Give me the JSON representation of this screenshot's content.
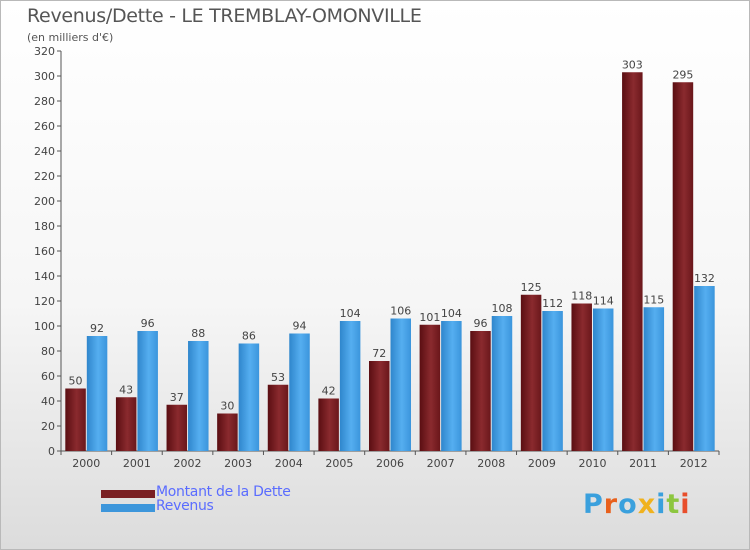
{
  "header": {
    "title": "Revenus/Dette - LE TREMBLAY-OMONVILLE",
    "unit_note": "(en milliers d'€)"
  },
  "legend": {
    "items": [
      {
        "label": "Montant de la Dette",
        "color": "#7a1f22"
      },
      {
        "label": "Revenus",
        "color": "#3d96db"
      }
    ]
  },
  "logo": {
    "text": "Proxiti",
    "letter_colors": [
      "#3aa0dd",
      "#e8601c",
      "#3aa0dd",
      "#f0b21e",
      "#3aa0dd",
      "#8cc63f",
      "#e84e2b"
    ]
  },
  "chart_data": {
    "type": "bar",
    "categories": [
      "2000",
      "2001",
      "2002",
      "2003",
      "2004",
      "2005",
      "2006",
      "2007",
      "2008",
      "2009",
      "2010",
      "2011",
      "2012"
    ],
    "series": [
      {
        "name": "Montant de la Dette",
        "values": [
          50,
          43,
          37,
          30,
          53,
          42,
          72,
          101,
          96,
          125,
          118,
          303,
          295
        ],
        "color": "#7a1f22"
      },
      {
        "name": "Revenus",
        "values": [
          92,
          96,
          88,
          86,
          94,
          104,
          106,
          104,
          108,
          112,
          114,
          115,
          132
        ],
        "color": "#3d96db"
      }
    ],
    "yticks": [
      0,
      20,
      40,
      60,
      80,
      100,
      120,
      140,
      160,
      180,
      200,
      220,
      240,
      260,
      280,
      300,
      320
    ],
    "ylim": [
      0,
      320
    ],
    "grid": false,
    "data_labels": true,
    "legend_position": "bottom-left"
  }
}
